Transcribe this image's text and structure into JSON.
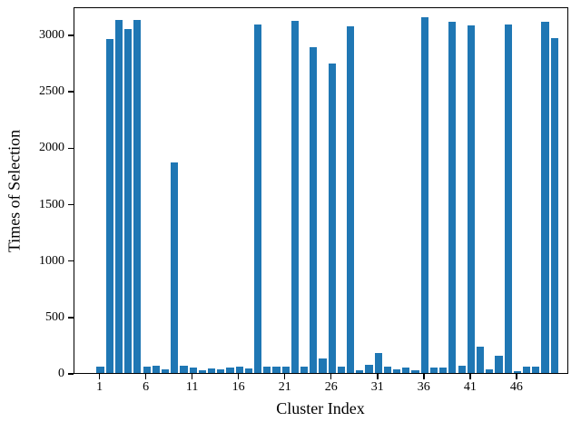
{
  "chart_data": {
    "type": "bar",
    "title": "",
    "xlabel": "Cluster Index",
    "ylabel": "Times of Selection",
    "bar_color": "#1f77b4",
    "axis_color": "#000000",
    "background_color": "#ffffff",
    "grid": false,
    "legend": null,
    "bar_width_fraction": 0.8,
    "xlim": [
      -1.8,
      51.6
    ],
    "ylim": [
      0,
      3250
    ],
    "xticks": [
      1,
      6,
      11,
      16,
      21,
      26,
      31,
      36,
      41,
      46
    ],
    "yticks": [
      0,
      500,
      1000,
      1500,
      2000,
      2500,
      3000
    ],
    "categories": [
      1,
      2,
      3,
      4,
      5,
      6,
      7,
      8,
      9,
      10,
      11,
      12,
      13,
      14,
      15,
      16,
      17,
      18,
      19,
      20,
      21,
      22,
      23,
      24,
      25,
      26,
      27,
      28,
      29,
      30,
      31,
      32,
      33,
      34,
      35,
      36,
      37,
      38,
      39,
      40,
      41,
      42,
      43,
      44,
      45,
      46,
      47,
      48,
      49,
      50
    ],
    "values": [
      55,
      2960,
      3130,
      3050,
      3130,
      60,
      65,
      30,
      1870,
      65,
      50,
      25,
      40,
      35,
      50,
      60,
      40,
      3090,
      55,
      55,
      55,
      3120,
      60,
      2890,
      130,
      2740,
      60,
      3075,
      25,
      70,
      175,
      55,
      30,
      45,
      25,
      3150,
      50,
      50,
      3110,
      65,
      3080,
      230,
      35,
      150,
      3090,
      20,
      60,
      55,
      3110,
      2970
    ]
  }
}
